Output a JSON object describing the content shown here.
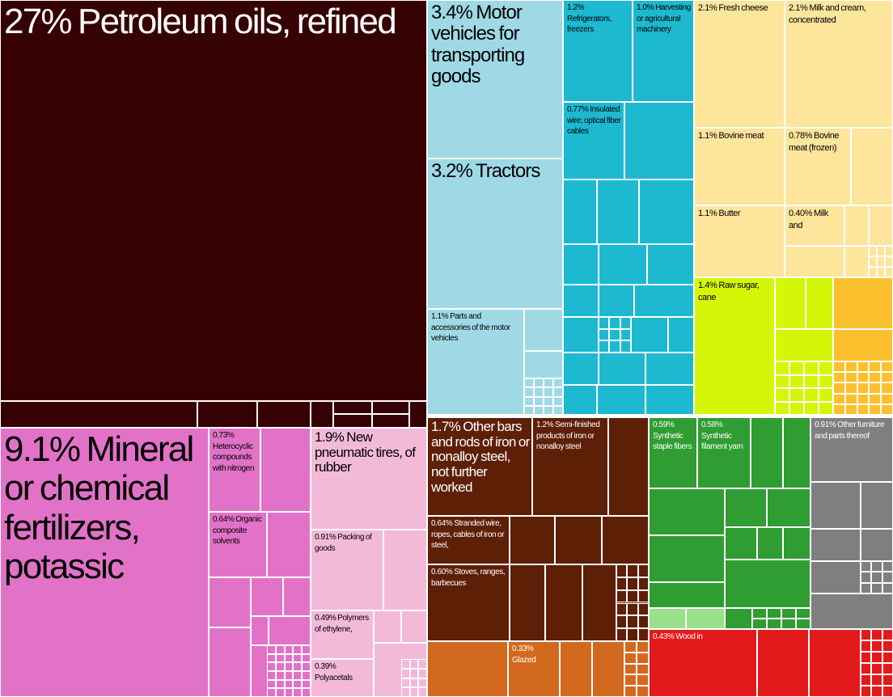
{
  "colors": {
    "petroleum": "#350103",
    "chemicals": "#e272c8",
    "plastics_rubber": "#f3b9d9",
    "vehicles": "#9fd9e6",
    "machinery": "#1cb9d1",
    "animal": "#fde59c",
    "vegetable": "#d4f708",
    "foodstuffs": "#fbc02d",
    "metals": "#5e1f07",
    "stone_glass": "#d2691e",
    "textiles": "#2f9d31",
    "textiles_light": "#98e08a",
    "misc": "#7f7f7f",
    "wood": "#e31a1c",
    "border": "#ffffff",
    "text_dark": "#ffffff",
    "text_light": "#000000"
  },
  "chart_data": {
    "type": "treemap",
    "value_unit": "% of exports",
    "items": [
      {
        "id": "petroleum_oils",
        "label": "27% Petroleum oils, refined",
        "value": 27,
        "group": "petroleum"
      },
      {
        "id": "fertilizers",
        "label": "9.1% Mineral or chemical fertilizers, potassic",
        "value": 9.1,
        "group": "chemicals"
      },
      {
        "id": "motor_vehicles_goods",
        "label": "3.4% Motor vehicles for transporting goods",
        "value": 3.4,
        "group": "vehicles"
      },
      {
        "id": "tractors",
        "label": "3.2% Tractors",
        "value": 3.2,
        "group": "vehicles"
      },
      {
        "id": "fresh_cheese",
        "label": "2.1% Fresh cheese",
        "value": 2.1,
        "group": "animal"
      },
      {
        "id": "milk_cream_conc",
        "label": "2.1% Milk and cream, concentrated",
        "value": 2.1,
        "group": "animal"
      },
      {
        "id": "pneumatic_tires",
        "label": "1.9% New pneumatic tires, of rubber",
        "value": 1.9,
        "group": "plastics_rubber"
      },
      {
        "id": "iron_bars",
        "label": "1.7% Other bars and rods of iron or nonalloy steel, not further worked",
        "value": 1.7,
        "group": "metals"
      },
      {
        "id": "raw_sugar",
        "label": "1.4% Raw sugar, cane",
        "value": 1.4,
        "group": "vegetable"
      },
      {
        "id": "refrigerators",
        "label": "1.2% Refrigerators, freezers",
        "value": 1.2,
        "group": "machinery"
      },
      {
        "id": "semi_finished_iron",
        "label": "1.2% Semi-finished products of iron or nonalloy steel",
        "value": 1.2,
        "group": "metals"
      },
      {
        "id": "parts_motor_vehicles",
        "label": "1.1% Parts and accessories of the motor vehicles",
        "value": 1.1,
        "group": "vehicles"
      },
      {
        "id": "bovine_meat",
        "label": "1.1% Bovine meat",
        "value": 1.1,
        "group": "animal"
      },
      {
        "id": "butter",
        "label": "1.1% Butter",
        "value": 1.1,
        "group": "animal"
      },
      {
        "id": "harvesting_machinery",
        "label": "1.0% Harvesting or agricultural machinery",
        "value": 1.0,
        "group": "machinery"
      },
      {
        "id": "packing_goods",
        "label": "0.91% Packing of goods",
        "value": 0.91,
        "group": "plastics_rubber"
      },
      {
        "id": "other_furniture",
        "label": "0.91% Other furniture and parts thereof",
        "value": 0.91,
        "group": "misc"
      },
      {
        "id": "bovine_meat_frozen",
        "label": "0.78% Bovine meat (frozen)",
        "value": 0.78,
        "group": "animal"
      },
      {
        "id": "insulated_wire",
        "label": "0.77% Insulated wire; optical fiber cables",
        "value": 0.77,
        "group": "machinery"
      },
      {
        "id": "heterocyclic",
        "label": "0.73% Heterocyclic compounds with nitrogen",
        "value": 0.73,
        "group": "chemicals"
      },
      {
        "id": "organic_solvents",
        "label": "0.64% Organic composite solvents",
        "value": 0.64,
        "group": "chemicals"
      },
      {
        "id": "stranded_wire",
        "label": "0.64% Stranded wire, ropes, cables of iron or steel,",
        "value": 0.64,
        "group": "metals"
      },
      {
        "id": "stoves",
        "label": "0.60% Stoves, ranges, barbecues",
        "value": 0.6,
        "group": "metals"
      },
      {
        "id": "synthetic_staple",
        "label": "0.59% Synthetic staple fibers",
        "value": 0.59,
        "group": "textiles"
      },
      {
        "id": "synthetic_filament",
        "label": "0.58% Synthetic filament yarn",
        "value": 0.58,
        "group": "textiles"
      },
      {
        "id": "polymers_ethylene",
        "label": "0.49% Polymers of ethylene,",
        "value": 0.49,
        "group": "plastics_rubber"
      },
      {
        "id": "wood",
        "label": "0.43% Wood in",
        "value": 0.43,
        "group": "wood"
      },
      {
        "id": "milk_and",
        "label": "0.40% Milk and",
        "value": 0.4,
        "group": "animal"
      },
      {
        "id": "polyacetals",
        "label": "0.39% Polyacetals",
        "value": 0.39,
        "group": "plastics_rubber"
      },
      {
        "id": "glazed",
        "label": "0.33% Glazed",
        "value": 0.33,
        "group": "stone_glass"
      }
    ]
  }
}
